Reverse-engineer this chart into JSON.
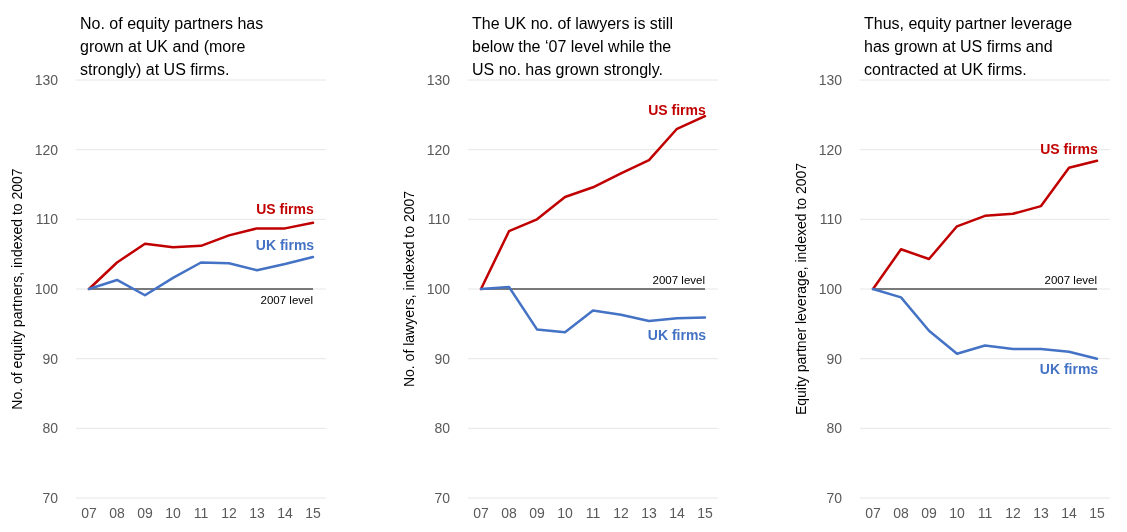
{
  "chart_data": [
    {
      "type": "line",
      "title": "No. of equity partners has grown at UK and (more strongly) at US firms.",
      "ylabel": "No. of equity partners, indexed to 2007",
      "categories": [
        "07",
        "08",
        "09",
        "10",
        "11",
        "12",
        "13",
        "14",
        "15"
      ],
      "ylim": [
        70,
        130
      ],
      "yticks": [
        70,
        80,
        90,
        100,
        110,
        120,
        130
      ],
      "grid": "y",
      "marker": "none",
      "line_style": "solid",
      "ref_lines": [
        {
          "axis": "y",
          "value": 100,
          "label": "2007 level",
          "color": "#000000"
        }
      ],
      "series": [
        {
          "name": "US firms",
          "color": "#c00000",
          "values": [
            100,
            103.8,
            106.5,
            106,
            106.2,
            107.7,
            108.7,
            108.7,
            109.5
          ]
        },
        {
          "name": "UK firms",
          "color": "#4472c4",
          "values": [
            100,
            101.3,
            99.1,
            101.6,
            103.8,
            103.7,
            102.7,
            103.6,
            104.6
          ]
        }
      ]
    },
    {
      "type": "line",
      "title": "The UK no. of lawyers is still below the ‘07 level while the US no. has grown strongly.",
      "ylabel": "No. of lawyers, indexed to 2007",
      "categories": [
        "07",
        "08",
        "09",
        "10",
        "11",
        "12",
        "13",
        "14",
        "15"
      ],
      "ylim": [
        70,
        130
      ],
      "yticks": [
        70,
        80,
        90,
        100,
        110,
        120,
        130
      ],
      "grid": "y",
      "marker": "none",
      "line_style": "solid",
      "ref_lines": [
        {
          "axis": "y",
          "value": 100,
          "label": "2007 level",
          "color": "#000000"
        }
      ],
      "series": [
        {
          "name": "US firms",
          "color": "#c00000",
          "values": [
            100,
            108.3,
            110,
            113.2,
            114.6,
            116.6,
            118.5,
            123,
            124.8
          ]
        },
        {
          "name": "UK firms",
          "color": "#4472c4",
          "values": [
            100,
            100.3,
            94.2,
            93.8,
            96.9,
            96.3,
            95.4,
            95.8,
            95.9
          ]
        }
      ]
    },
    {
      "type": "line",
      "title": "Thus, equity partner leverage has grown at US firms and contracted at UK firms.",
      "ylabel": "Equity partner leverage, indexed to 2007",
      "categories": [
        "07",
        "08",
        "09",
        "10",
        "11",
        "12",
        "13",
        "14",
        "15"
      ],
      "ylim": [
        70,
        130
      ],
      "yticks": [
        70,
        80,
        90,
        100,
        110,
        120,
        130
      ],
      "grid": "y",
      "marker": "none",
      "line_style": "solid",
      "ref_lines": [
        {
          "axis": "y",
          "value": 100,
          "label": "2007 level",
          "color": "#000000"
        }
      ],
      "series": [
        {
          "name": "US firms",
          "color": "#c00000",
          "values": [
            100,
            105.7,
            104.3,
            109,
            110.5,
            110.8,
            111.9,
            117.4,
            118.4
          ]
        },
        {
          "name": "UK firms",
          "color": "#4472c4",
          "values": [
            100,
            98.8,
            94,
            90.7,
            91.9,
            91.4,
            91.4,
            91,
            90
          ]
        }
      ]
    }
  ]
}
